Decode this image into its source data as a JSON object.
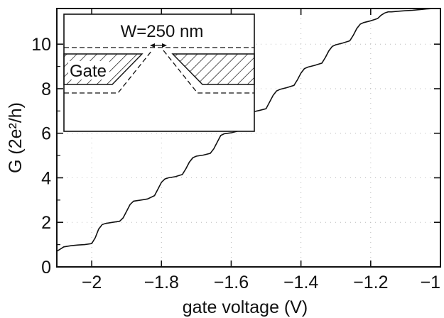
{
  "chart_data": {
    "type": "line",
    "xlabel": "gate voltage (V)",
    "ylabel": "G (2e²/h)",
    "xlim": [
      -2.1,
      -1.0
    ],
    "ylim": [
      0,
      11.6
    ],
    "xticks": [
      -2,
      -1.8,
      -1.6,
      -1.4,
      -1.2,
      -1
    ],
    "xtick_labels": [
      "−2",
      "−1.8",
      "−1.6",
      "−1.4",
      "−1.2",
      "−1"
    ],
    "yticks": [
      0,
      2,
      4,
      6,
      8,
      10
    ],
    "ytick_labels": [
      "0",
      "2",
      "4",
      "6",
      "8",
      "10"
    ],
    "grid": true,
    "series": [
      {
        "x": [
          -2.1,
          -2.08,
          -2.06,
          -2.04,
          -2.02,
          -2.0,
          -1.99,
          -1.98,
          -1.97,
          -1.96,
          -1.94,
          -1.92,
          -1.91,
          -1.9,
          -1.89,
          -1.88,
          -1.86,
          -1.84,
          -1.82,
          -1.81,
          -1.8,
          -1.79,
          -1.78,
          -1.76,
          -1.74,
          -1.73,
          -1.72,
          -1.71,
          -1.7,
          -1.68,
          -1.66,
          -1.65,
          -1.64,
          -1.63,
          -1.62,
          -1.6,
          -1.58,
          -1.57,
          -1.56,
          -1.55,
          -1.54,
          -1.52,
          -1.5,
          -1.49,
          -1.48,
          -1.47,
          -1.46,
          -1.44,
          -1.42,
          -1.41,
          -1.4,
          -1.39,
          -1.38,
          -1.36,
          -1.34,
          -1.33,
          -1.32,
          -1.31,
          -1.3,
          -1.28,
          -1.26,
          -1.25,
          -1.24,
          -1.23,
          -1.22,
          -1.2,
          -1.18,
          -1.17,
          -1.16,
          -1.15,
          -1.14,
          -1.12,
          -1.1,
          -1.08,
          -1.06,
          -1.04,
          -1.02,
          -1.0
        ],
        "y": [
          0.7,
          0.9,
          0.95,
          0.98,
          1.0,
          1.05,
          1.3,
          1.7,
          1.9,
          1.95,
          2.0,
          2.05,
          2.2,
          2.5,
          2.8,
          2.95,
          3.0,
          3.05,
          3.2,
          3.5,
          3.8,
          3.95,
          4.0,
          4.05,
          4.15,
          4.4,
          4.7,
          4.9,
          4.97,
          5.02,
          5.1,
          5.3,
          5.6,
          5.9,
          5.98,
          6.02,
          6.1,
          6.3,
          6.6,
          6.85,
          6.95,
          7.02,
          7.1,
          7.4,
          7.7,
          7.9,
          7.97,
          8.05,
          8.15,
          8.4,
          8.7,
          8.9,
          8.97,
          9.05,
          9.15,
          9.4,
          9.7,
          9.9,
          9.97,
          10.05,
          10.15,
          10.4,
          10.7,
          10.9,
          10.97,
          11.05,
          11.15,
          11.3,
          11.4,
          11.45,
          11.45,
          11.48,
          11.5,
          11.52,
          11.55,
          11.58,
          11.6,
          11.6
        ]
      }
    ],
    "inset": {
      "width_label": "W=250 nm",
      "gate_label": "Gate"
    }
  }
}
